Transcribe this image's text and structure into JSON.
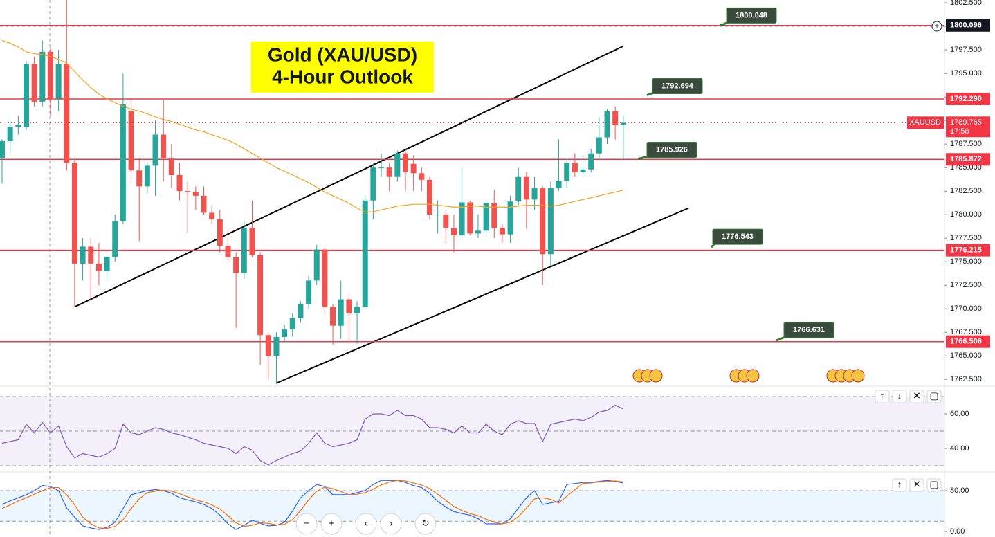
{
  "chart_data": [
    {
      "type": "candlestick",
      "annotation": [
        "Gold (XAU/USD)",
        "4-Hour Outlook"
      ],
      "symbol": "XAUUSD",
      "countdown": "17:58",
      "last_price": 1789.765,
      "open": [
        1786,
        1787.8,
        1789.3,
        1789.3,
        1796,
        1792,
        1797.3,
        1792.3,
        1796,
        1785.5,
        1774.8,
        1776.6,
        1774.8,
        1774,
        1775.5,
        1779.3,
        1791,
        1784.7,
        1783,
        1785.2,
        1788.5,
        1786,
        1784.2,
        1782.5,
        1782.4,
        1782,
        1780.2,
        1779.5,
        1776.7,
        1775.5,
        1773.8,
        1778.6,
        1775.7,
        1767.2,
        1765,
        1767,
        1767.8,
        1769,
        1770.5,
        1773,
        1776.3,
        1770.2,
        1768.2,
        1771,
        1769.5,
        1770.2,
        1781.5,
        1785,
        1785,
        1784,
        1786.5,
        1785.4,
        1784.4,
        1783.7,
        1780,
        1780,
        1778.6,
        1777.8,
        1781.3,
        1778,
        1778.3,
        1781.2,
        1778.6,
        1777.9,
        1781.4,
        1784,
        1781.6,
        1782.8,
        1775.8,
        1782.8,
        1783.6,
        1785.5,
        1784.5,
        1784.8,
        1786.5,
        1788.2,
        1791,
        1789.5
      ],
      "high": [
        1788,
        1790,
        1790.5,
        1796.3,
        1796.8,
        1798.5,
        1797.8,
        1797.5,
        1802.8,
        1786,
        1777.5,
        1777.5,
        1777,
        1776,
        1780,
        1795,
        1792.3,
        1786,
        1785.5,
        1790,
        1792.2,
        1787.5,
        1785.5,
        1783.5,
        1783,
        1783,
        1781,
        1780.5,
        1778.5,
        1776,
        1779.3,
        1781.5,
        1776,
        1767.5,
        1767.5,
        1768.3,
        1769.5,
        1770.8,
        1773.5,
        1776.8,
        1776.5,
        1770.5,
        1773,
        1771.5,
        1770.8,
        1782,
        1785.5,
        1786.5,
        1785.5,
        1786.8,
        1787,
        1786.3,
        1785,
        1784,
        1781.5,
        1780.5,
        1780,
        1785,
        1781.5,
        1780,
        1781.6,
        1782.6,
        1779,
        1782,
        1785,
        1784.5,
        1784,
        1783,
        1783.5,
        1788,
        1786,
        1786.5,
        1786,
        1787,
        1790.3,
        1791.2,
        1791.5,
        1790.5
      ],
      "low": [
        1783.3,
        1786.5,
        1788.5,
        1789,
        1791.5,
        1791.5,
        1790.5,
        1791,
        1784.7,
        1770.2,
        1773,
        1771,
        1772.5,
        1773,
        1775,
        1779,
        1783.6,
        1777.2,
        1782.3,
        1782,
        1783.5,
        1782.8,
        1781.5,
        1778,
        1780.5,
        1780,
        1779,
        1776,
        1775,
        1768,
        1773.2,
        1775.5,
        1764,
        1762.5,
        1762,
        1766.5,
        1767,
        1768.5,
        1770,
        1772.5,
        1769.3,
        1766.2,
        1766.8,
        1766.3,
        1766.3,
        1770,
        1779.5,
        1784,
        1782.5,
        1783.5,
        1782.5,
        1782.5,
        1782.5,
        1779.5,
        1778,
        1777,
        1776,
        1777.5,
        1777.8,
        1777.5,
        1778,
        1777.5,
        1777,
        1777,
        1781,
        1778.5,
        1780.5,
        1772.5,
        1774.5,
        1782.5,
        1782.8,
        1784,
        1784,
        1784.5,
        1786,
        1787.5,
        1788,
        1785.9
      ],
      "close": [
        1787.8,
        1789.3,
        1789.5,
        1796,
        1792,
        1797.3,
        1792.3,
        1796,
        1785.5,
        1774.8,
        1776.6,
        1774.8,
        1774,
        1775.5,
        1779.3,
        1791.7,
        1784.7,
        1783,
        1785.2,
        1788.5,
        1786,
        1784.2,
        1782.5,
        1782.4,
        1782,
        1780.2,
        1779.5,
        1776.7,
        1775.5,
        1773.8,
        1778.6,
        1775.7,
        1767.2,
        1765,
        1767,
        1767.8,
        1769,
        1770.5,
        1773,
        1776.3,
        1770.2,
        1768.2,
        1771,
        1769.5,
        1770.2,
        1781.5,
        1785,
        1785,
        1784,
        1786.5,
        1784.5,
        1784.4,
        1783.7,
        1780,
        1780,
        1778.6,
        1777.8,
        1781.3,
        1778,
        1778.3,
        1781.2,
        1778.6,
        1777.9,
        1781.4,
        1784,
        1781.6,
        1782.8,
        1775.8,
        1782.8,
        1783.6,
        1785.5,
        1784.5,
        1784.8,
        1786.5,
        1788.2,
        1791,
        1789.5,
        1789.765
      ],
      "moving_average": {
        "color": "#f7a21b",
        "values": [
          1798.5,
          1798.2,
          1797.8,
          1797.3,
          1797.1,
          1797,
          1796.8,
          1796.5,
          1796.1,
          1795.2,
          1794.3,
          1793.5,
          1792.8,
          1792.3,
          1791.9,
          1791.5,
          1791.2,
          1791,
          1790.7,
          1790.4,
          1790.1,
          1789.9,
          1789.6,
          1789.3,
          1789,
          1788.8,
          1788.5,
          1788.2,
          1787.9,
          1787.5,
          1787,
          1786.5,
          1786,
          1785.5,
          1785,
          1784.6,
          1784.2,
          1783.8,
          1783.4,
          1782.9,
          1782.4,
          1782,
          1781.6,
          1781.2,
          1780.7,
          1780.3,
          1780.3,
          1780.5,
          1780.7,
          1780.9,
          1781,
          1781.1,
          1781.1,
          1781.1,
          1781,
          1780.9,
          1780.8,
          1780.8,
          1780.9,
          1780.9,
          1780.8,
          1780.8,
          1780.8,
          1780.8,
          1780.9,
          1781,
          1781,
          1781,
          1780.9,
          1781,
          1781.2,
          1781.4,
          1781.6,
          1781.8,
          1782,
          1782.2,
          1782.4,
          1782.6
        ]
      },
      "levels": [
        1800.096,
        1792.29,
        1785.872,
        1776.215,
        1766.506
      ],
      "level_labels": [
        "1800.096",
        "1792.290",
        "1785.872",
        "1776.215",
        "1766.506"
      ],
      "callouts": [
        1800.048,
        1792.694,
        1785.926,
        1776.543,
        1766.631
      ],
      "trendlines": [
        {
          "x": [
            9,
            77
          ],
          "y": [
            1770.2,
            1797.9
          ]
        },
        {
          "x": [
            34,
            85.1
          ],
          "y": [
            1762.1,
            1780.7
          ]
        }
      ],
      "ylim": [
        1762,
        1802.8
      ],
      "yticks": [
        {
          "value": 1762.5,
          "label": "1762.500"
        },
        {
          "value": 1765,
          "label": "1765.000"
        },
        {
          "value": 1767.5,
          "label": "1767.500"
        },
        {
          "value": 1770,
          "label": "1770.000"
        },
        {
          "value": 1772.5,
          "label": "1772.500"
        },
        {
          "value": 1775,
          "label": "1775.000"
        },
        {
          "value": 1777.5,
          "label": "1777.500"
        },
        {
          "value": 1780,
          "label": "1780.000"
        },
        {
          "value": 1782.5,
          "label": "1782.500"
        },
        {
          "value": 1785,
          "label": "1785.000"
        },
        {
          "value": 1787.5,
          "label": "1787.500"
        },
        {
          "value": 1790,
          "label": "1790.000"
        },
        {
          "value": 1792.5,
          "label": "1792.500"
        },
        {
          "value": 1795,
          "label": "1795.000"
        },
        {
          "value": 1797.5,
          "label": "1797.500"
        },
        {
          "value": 1800,
          "label": "1800.000"
        },
        {
          "value": 1802.5,
          "label": "1802.500"
        }
      ],
      "up_color": "#26a69a",
      "down_color": "#ef5350",
      "level_color": "#f23645",
      "grid": false
    },
    {
      "type": "line",
      "series": [
        {
          "color": "#7e57c2",
          "values": [
            43,
            44,
            45,
            54,
            49,
            55,
            49,
            53,
            41,
            34.5,
            37,
            36,
            35,
            37,
            40,
            54,
            49,
            48,
            50,
            52,
            51,
            49,
            48,
            46.5,
            45,
            43,
            42,
            41,
            40,
            37,
            41,
            39,
            33,
            30.5,
            33,
            35,
            37,
            38.5,
            43,
            49,
            43,
            41,
            42,
            43,
            45,
            57,
            60,
            60,
            59,
            62,
            59,
            59,
            57,
            52,
            52,
            51,
            49,
            53,
            49,
            49,
            54,
            50,
            48,
            54,
            56,
            54.4,
            54.4,
            44,
            54,
            55,
            56,
            57,
            56,
            58,
            61,
            62,
            65,
            62.8
          ]
        }
      ],
      "bands": [
        30,
        50,
        70
      ],
      "band_color": "#7e57c2",
      "ylim": [
        26.4,
        76
      ],
      "yticks": [
        {
          "value": 60,
          "label": "60.00"
        },
        {
          "value": 40,
          "label": "40.00"
        }
      ]
    },
    {
      "type": "line",
      "series": [
        {
          "color": "#2962ff",
          "values": [
            53,
            60,
            66,
            72,
            80,
            90,
            88,
            80,
            46,
            28,
            11,
            7,
            4,
            8,
            18,
            45,
            72,
            76,
            80,
            82,
            80,
            75,
            66,
            62,
            58,
            53,
            45,
            32,
            15,
            4,
            12,
            22,
            16,
            11,
            12,
            18,
            40,
            66,
            80,
            92,
            88,
            72,
            72,
            72,
            76,
            80,
            92,
            100,
            100,
            100,
            96,
            90,
            86,
            75,
            59,
            48,
            39,
            35,
            32,
            25,
            15,
            15,
            15,
            25,
            46,
            66,
            80,
            53,
            56,
            59,
            92,
            94,
            96,
            96,
            98,
            100,
            98,
            95
          ]
        },
        {
          "color": "#ff6d00",
          "values": [
            45,
            52,
            60,
            66,
            73,
            80,
            86,
            86,
            72,
            52,
            28,
            15,
            7,
            6,
            10,
            23,
            45,
            64,
            76,
            79,
            81,
            79,
            74,
            68,
            62,
            58,
            52,
            44,
            31,
            17,
            10,
            12,
            17,
            16,
            13,
            14,
            23,
            41,
            62,
            79,
            87,
            84,
            78,
            72,
            73,
            76,
            83,
            91,
            97,
            100,
            99,
            95,
            91,
            84,
            73,
            61,
            49,
            41,
            35,
            31,
            24,
            18,
            15,
            18,
            29,
            46,
            64,
            66,
            63,
            56,
            69,
            82,
            94,
            95,
            97,
            98,
            99,
            97
          ]
        }
      ],
      "bands": [
        20,
        80
      ],
      "band_color": "#2196f3",
      "ylim": [
        -10.8,
        116.6
      ],
      "yticks": [
        {
          "value": 80,
          "label": "80.00"
        },
        {
          "value": 0,
          "label": "0.00"
        }
      ]
    }
  ]
}
